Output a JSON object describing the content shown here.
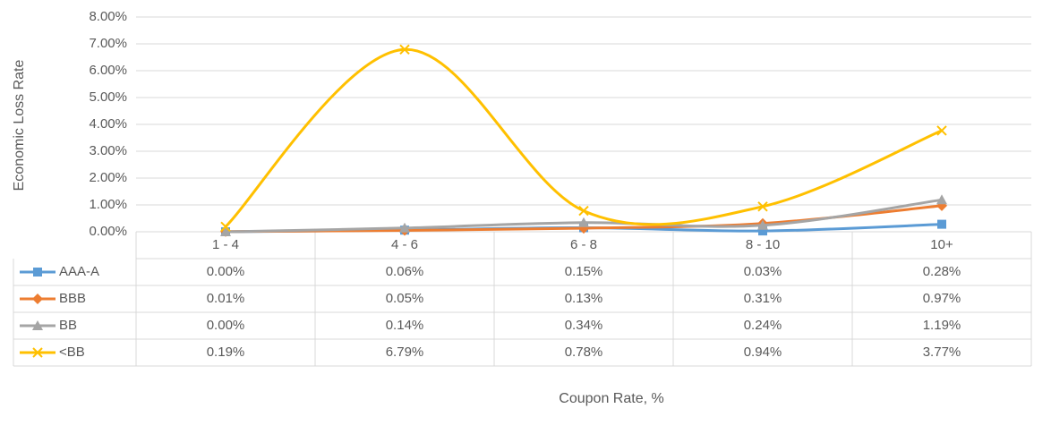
{
  "chart_data": {
    "type": "line",
    "smooth": true,
    "y_label": "Economic Loss Rate",
    "x_label": "Coupon Rate, %",
    "categories": [
      "1 - 4",
      "4 - 6",
      "6 - 8",
      "8 - 10",
      "10+"
    ],
    "ylim": [
      0,
      8
    ],
    "yticks": [
      {
        "value": 0,
        "label": "0.00%"
      },
      {
        "value": 1,
        "label": "1.00%"
      },
      {
        "value": 2,
        "label": "2.00%"
      },
      {
        "value": 3,
        "label": "3.00%"
      },
      {
        "value": 4,
        "label": "4.00%"
      },
      {
        "value": 5,
        "label": "5.00%"
      },
      {
        "value": 6,
        "label": "6.00%"
      },
      {
        "value": 7,
        "label": "7.00%"
      },
      {
        "value": 8,
        "label": "8.00%"
      }
    ],
    "grid": true,
    "data_table": true,
    "series": [
      {
        "name": "AAA-A",
        "color": "#5b9bd5",
        "marker": "square",
        "values": [
          0.0,
          0.06,
          0.15,
          0.03,
          0.28
        ],
        "value_labels": [
          "0.00%",
          "0.06%",
          "0.15%",
          "0.03%",
          "0.28%"
        ]
      },
      {
        "name": "BBB",
        "color": "#ed7d31",
        "marker": "diamond",
        "values": [
          0.01,
          0.05,
          0.13,
          0.31,
          0.97
        ],
        "value_labels": [
          "0.01%",
          "0.05%",
          "0.13%",
          "0.31%",
          "0.97%"
        ]
      },
      {
        "name": "BB",
        "color": "#a5a5a5",
        "marker": "triangle",
        "values": [
          0.0,
          0.14,
          0.34,
          0.24,
          1.19
        ],
        "value_labels": [
          "0.00%",
          "0.14%",
          "0.34%",
          "0.24%",
          "1.19%"
        ]
      },
      {
        "name": "<BB",
        "color": "#ffc000",
        "marker": "x",
        "values": [
          0.19,
          6.79,
          0.78,
          0.94,
          3.77
        ],
        "value_labels": [
          "0.19%",
          "6.79%",
          "0.78%",
          "0.94%",
          "3.77%"
        ]
      }
    ]
  }
}
